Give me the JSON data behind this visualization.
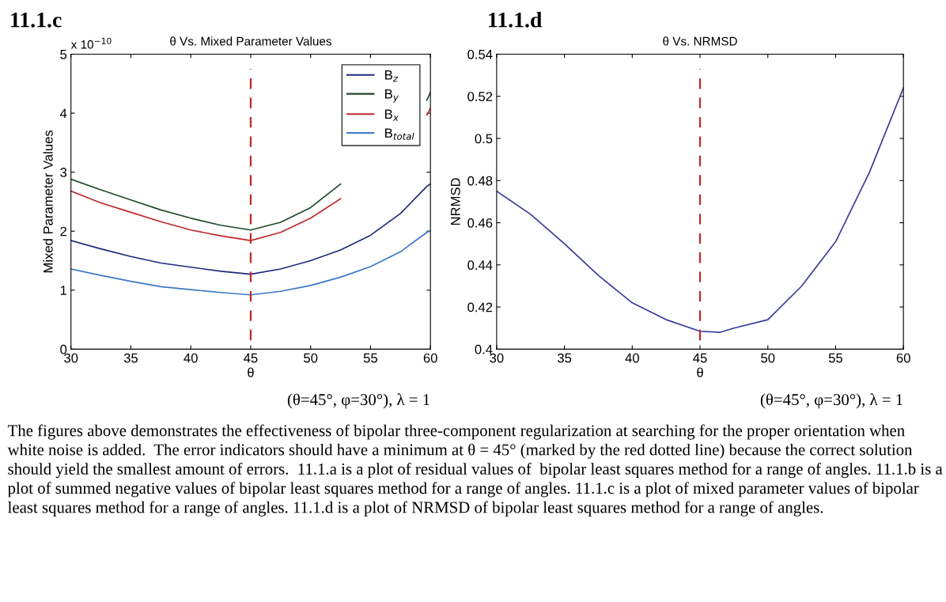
{
  "chart_data": [
    {
      "type": "line",
      "title": "11.1.c",
      "subtitle": "θ Vs. Mixed Parameter Values",
      "xlabel": "θ",
      "ylabel": "Mixed Parameter Values",
      "x": [
        30,
        32.5,
        35,
        37.5,
        40,
        42.5,
        45,
        47.5,
        50,
        52.5,
        55,
        57.5,
        59.7,
        60
      ],
      "series": [
        {
          "name": "B$_{z}$",
          "color": "#1f2a7a",
          "values": [
            1.84,
            1.7,
            1.57,
            1.46,
            1.39,
            1.32,
            1.27,
            1.36,
            1.5,
            1.68,
            1.93,
            2.3,
            2.76,
            2.8
          ]
        },
        {
          "name": "B$_{y}$",
          "color": "#1f4a2a",
          "values": [
            2.88,
            2.7,
            2.53,
            2.36,
            2.22,
            2.1,
            2.02,
            2.15,
            2.4,
            2.8,
            null,
            null,
            4.22,
            4.35
          ]
        },
        {
          "name": "B$_{x}$",
          "color": "#c0282a",
          "values": [
            2.68,
            2.48,
            2.32,
            2.16,
            2.02,
            1.92,
            1.84,
            1.98,
            2.22,
            2.55,
            null,
            null,
            3.97,
            4.08
          ]
        },
        {
          "name": "B$_{total}$",
          "color": "#3a78c8",
          "values": [
            1.36,
            1.25,
            1.15,
            1.06,
            1.01,
            0.96,
            0.92,
            0.98,
            1.08,
            1.22,
            1.4,
            1.65,
            1.98,
            2.01
          ]
        }
      ],
      "xlim": [
        30,
        60
      ],
      "xticks": [
        30,
        35,
        40,
        45,
        50,
        55,
        60
      ],
      "ylim": [
        0,
        5
      ],
      "yticks": [
        0,
        1,
        2,
        3,
        4,
        5
      ],
      "ref_lines": [
        {
          "axis": "x",
          "value": 45,
          "color": "#c0282a",
          "line_style": "dashed"
        }
      ],
      "legend": "top right",
      "grid": false,
      "annotations": [
        "x 10$^{−10}$",
        "(θ=45°, φ=30°), λ = 1"
      ]
    },
    {
      "type": "line",
      "title": "11.1.d",
      "subtitle": "θ Vs. NRMSD",
      "xlabel": "θ",
      "ylabel": "NRMSD",
      "x": [
        30,
        32.5,
        35,
        37.5,
        40,
        42.5,
        45,
        46.5,
        47.5,
        50,
        52.5,
        55,
        57.5,
        60
      ],
      "series": [
        {
          "color": "#3a3a9a",
          "values": [
            0.475,
            0.464,
            0.45,
            0.435,
            0.422,
            0.414,
            0.4085,
            0.408,
            0.41,
            0.414,
            0.43,
            0.451,
            0.484,
            0.524
          ]
        }
      ],
      "xlim": [
        30,
        60
      ],
      "xticks": [
        30,
        35,
        40,
        45,
        50,
        55,
        60
      ],
      "ylim": [
        0.4,
        0.54
      ],
      "yticks": [
        0.4,
        0.42,
        0.44,
        0.46,
        0.48,
        0.5,
        0.52,
        0.54
      ],
      "ref_lines": [
        {
          "axis": "x",
          "value": 45,
          "color": "#c0282a",
          "line_style": "dashed"
        }
      ],
      "grid": false,
      "annotations": [
        "(θ=45°, φ=30°), λ = 1",
        "The figures above demonstrates the effectiveness of bipolar three-component regularization at searching for the proper orientation when white noise is added.  The error indicators should have a minimum at θ = 45° (marked by the red dotted line) because the correct solution should yield the smallest amount of errors.  11.1.a is a plot of residual values of  bipolar least squares method for a range of angles. 11.1.b is a plot of summed negative values of bipolar least squares method for a range of angles. 11.1.c is a plot of mixed parameter values of bipolar least squares method for a range of angles. 11.1.d is a plot of NRMSD of bipolar least squares method for a range of angles."
      ]
    }
  ]
}
